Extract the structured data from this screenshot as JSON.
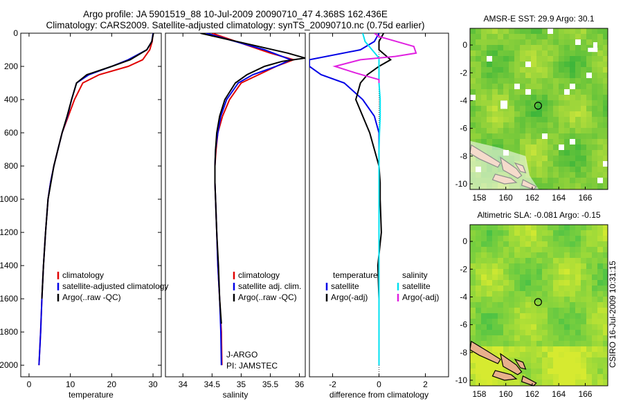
{
  "header": {
    "line1": "Argo profile: JA 5901519_88 10-Jul-2009 20090710_47 4.368S 162.436E",
    "line2": "Climatology: CARS2009. Satellite-adjusted climatology: synTS_20090710.nc (0.75d earlier)"
  },
  "stamp": "CSIRO 16-Jul-2009 10:31:15",
  "colors": {
    "climatology": "#e00000",
    "satellite": "#0000e6",
    "argo": "#000000",
    "sal_satellite": "#00e0f0",
    "sal_argo": "#e020e0"
  },
  "chart_data": [
    {
      "type": "line",
      "panel": "temperature",
      "xlabel": "temperature",
      "ylabel": "",
      "xlim": [
        -2,
        32
      ],
      "ylim": [
        2070,
        0
      ],
      "x_ticks": [
        0,
        10,
        20,
        30
      ],
      "y_ticks": [
        0,
        200,
        400,
        600,
        800,
        1000,
        1200,
        1400,
        1600,
        1800,
        2000
      ],
      "legend": [
        "climatology",
        "satellite-adjusted climatology",
        "Argo(..raw -QC)"
      ],
      "series": [
        {
          "name": "climatology",
          "color": "#e00000",
          "points": [
            [
              30,
              0
            ],
            [
              29.8,
              50
            ],
            [
              29.2,
              100
            ],
            [
              27.5,
              160
            ],
            [
              24,
              200
            ],
            [
              17,
              250
            ],
            [
              13,
              300
            ],
            [
              11,
              400
            ],
            [
              9.5,
              500
            ],
            [
              8,
              600
            ],
            [
              7,
              700
            ],
            [
              6,
              800
            ],
            [
              5.2,
              900
            ],
            [
              4.6,
              1000
            ],
            [
              4,
              1200
            ],
            [
              3.5,
              1400
            ],
            [
              3.1,
              1600
            ],
            [
              2.8,
              1800
            ],
            [
              2.4,
              2000
            ]
          ]
        },
        {
          "name": "satellite-adjusted climatology",
          "color": "#0000e6",
          "points": [
            [
              30,
              0
            ],
            [
              29.7,
              50
            ],
            [
              28.5,
              100
            ],
            [
              24,
              160
            ],
            [
              20,
              200
            ],
            [
              14.5,
              250
            ],
            [
              11.5,
              300
            ],
            [
              10.3,
              400
            ],
            [
              9.3,
              500
            ],
            [
              8,
              600
            ],
            [
              7,
              700
            ],
            [
              6,
              800
            ],
            [
              5.2,
              900
            ],
            [
              4.6,
              1000
            ],
            [
              4,
              1200
            ],
            [
              3.5,
              1400
            ],
            [
              3.1,
              1600
            ],
            [
              2.8,
              1800
            ],
            [
              2.4,
              2000
            ]
          ]
        },
        {
          "name": "Argo(..raw -QC)",
          "color": "#000000",
          "points": [
            [
              30.1,
              0
            ],
            [
              29.7,
              50
            ],
            [
              28.5,
              100
            ],
            [
              24.5,
              160
            ],
            [
              20,
              200
            ],
            [
              14,
              250
            ],
            [
              11.5,
              300
            ],
            [
              10.3,
              400
            ],
            [
              9.2,
              500
            ],
            [
              8,
              600
            ],
            [
              7,
              700
            ],
            [
              6,
              800
            ],
            [
              5.3,
              900
            ],
            [
              4.6,
              1000
            ],
            [
              4,
              1200
            ],
            [
              3.5,
              1400
            ],
            [
              3.1,
              1600
            ]
          ]
        }
      ]
    },
    {
      "type": "line",
      "panel": "salinity",
      "xlabel": "salinity",
      "xlim": [
        33.7,
        36.1
      ],
      "ylim": [
        2070,
        0
      ],
      "x_ticks": [
        34,
        34.5,
        35,
        35.5,
        36
      ],
      "legend": [
        "climatology",
        "satellite adj. clim.",
        "Argo(..raw -QC)"
      ],
      "annotation": [
        "J-ARGO",
        "PI: JAMSTEC"
      ],
      "series": [
        {
          "name": "climatology",
          "color": "#e00000",
          "points": [
            [
              34.5,
              0
            ],
            [
              35.0,
              60
            ],
            [
              35.5,
              120
            ],
            [
              35.9,
              160
            ],
            [
              35.6,
              200
            ],
            [
              35.3,
              250
            ],
            [
              35.0,
              300
            ],
            [
              34.8,
              400
            ],
            [
              34.68,
              500
            ],
            [
              34.6,
              600
            ],
            [
              34.57,
              700
            ],
            [
              34.55,
              800
            ],
            [
              34.55,
              900
            ],
            [
              34.56,
              1000
            ],
            [
              34.58,
              1200
            ],
            [
              34.6,
              1400
            ],
            [
              34.63,
              1600
            ],
            [
              34.66,
              1800
            ],
            [
              34.67,
              2000
            ]
          ]
        },
        {
          "name": "satellite adj. clim.",
          "color": "#0000e6",
          "points": [
            [
              34.4,
              0
            ],
            [
              34.9,
              50
            ],
            [
              35.4,
              100
            ],
            [
              35.7,
              140
            ],
            [
              35.85,
              160
            ],
            [
              35.6,
              200
            ],
            [
              35.2,
              250
            ],
            [
              34.95,
              300
            ],
            [
              34.75,
              400
            ],
            [
              34.65,
              500
            ],
            [
              34.6,
              600
            ],
            [
              34.56,
              700
            ],
            [
              34.55,
              800
            ],
            [
              34.55,
              900
            ],
            [
              34.56,
              1000
            ],
            [
              34.58,
              1200
            ],
            [
              34.6,
              1400
            ],
            [
              34.63,
              1600
            ],
            [
              34.65,
              1800
            ],
            [
              34.66,
              2000
            ]
          ]
        },
        {
          "name": "Argo(..raw -QC)",
          "color": "#000000",
          "points": [
            [
              34.3,
              0
            ],
            [
              34.8,
              40
            ],
            [
              35.3,
              80
            ],
            [
              35.8,
              120
            ],
            [
              36.1,
              150
            ],
            [
              35.7,
              170
            ],
            [
              35.4,
              200
            ],
            [
              35.1,
              250
            ],
            [
              34.9,
              300
            ],
            [
              34.72,
              400
            ],
            [
              34.63,
              500
            ],
            [
              34.58,
              600
            ],
            [
              34.56,
              700
            ],
            [
              34.55,
              800
            ],
            [
              34.55,
              900
            ],
            [
              34.56,
              1000
            ],
            [
              34.58,
              1200
            ],
            [
              34.61,
              1400
            ],
            [
              34.63,
              1600
            ],
            [
              34.66,
              1750
            ]
          ]
        }
      ]
    },
    {
      "type": "line",
      "panel": "difference",
      "xlabel": "difference from climatology",
      "xlim": [
        -3,
        3
      ],
      "ylim": [
        2070,
        0
      ],
      "x_ticks": [
        -2,
        0,
        2
      ],
      "legend_headers": [
        "temperature",
        "salinity"
      ],
      "legend": [
        "satellite",
        "Argo(-adj)",
        "satellite",
        "Argo(-adj)"
      ],
      "series": [
        {
          "name": "temperature satellite",
          "color": "#0000e6",
          "points": [
            [
              0,
              0
            ],
            [
              -0.2,
              50
            ],
            [
              -0.8,
              100
            ],
            [
              -3,
              160
            ],
            [
              -3,
              200
            ],
            [
              -2.5,
              250
            ],
            [
              -1.5,
              300
            ],
            [
              -0.7,
              400
            ],
            [
              -0.2,
              500
            ],
            [
              0,
              600
            ],
            [
              0,
              800
            ],
            [
              0,
              1000
            ],
            [
              0,
              1200
            ],
            [
              0,
              1400
            ],
            [
              0,
              1600
            ],
            [
              0,
              1800
            ],
            [
              0,
              2000
            ]
          ]
        },
        {
          "name": "temperature Argo(-adj)",
          "color": "#000000",
          "points": [
            [
              0.2,
              0
            ],
            [
              0,
              50
            ],
            [
              0,
              100
            ],
            [
              0.5,
              160
            ],
            [
              0,
              200
            ],
            [
              -0.5,
              250
            ],
            [
              -0.8,
              300
            ],
            [
              -0.9,
              350
            ],
            [
              -1.0,
              400
            ],
            [
              -0.7,
              500
            ],
            [
              -0.4,
              600
            ],
            [
              -0.2,
              700
            ],
            [
              0,
              800
            ],
            [
              0.05,
              900
            ],
            [
              0.05,
              1000
            ],
            [
              0.1,
              1200
            ],
            [
              -0.05,
              1400
            ],
            [
              0,
              1600
            ]
          ]
        },
        {
          "name": "salinity satellite",
          "color": "#00e0f0",
          "points": [
            [
              -0.7,
              0
            ],
            [
              -0.6,
              50
            ],
            [
              -0.3,
              100
            ],
            [
              0,
              150
            ],
            [
              0,
              200
            ],
            [
              0,
              300
            ],
            [
              0.05,
              400
            ],
            [
              0.05,
              500
            ],
            [
              0.02,
              600
            ],
            [
              0,
              700
            ],
            [
              0,
              800
            ],
            [
              0,
              1000
            ],
            [
              0,
              1200
            ],
            [
              0,
              1400
            ],
            [
              0,
              1600
            ],
            [
              0,
              1800
            ],
            [
              0,
              2000
            ]
          ]
        },
        {
          "name": "salinity Argo(-adj)",
          "color": "#e020e0",
          "points": [
            [
              -0.2,
              0
            ],
            [
              0,
              20
            ],
            [
              0.5,
              40
            ],
            [
              1.5,
              80
            ],
            [
              1.6,
              120
            ],
            [
              0.7,
              140
            ],
            [
              -0.8,
              160
            ],
            [
              -1.9,
              200
            ],
            [
              -1.0,
              240
            ],
            [
              0,
              280
            ],
            [
              0,
              300
            ]
          ]
        }
      ]
    },
    {
      "type": "heatmap",
      "panel": "sst_map",
      "title": "AMSR-E SST: 29.9 Argo: 30.1",
      "xlim": [
        157.3,
        167.7
      ],
      "ylim": [
        -10.4,
        1.2
      ],
      "x_ticks": [
        158,
        160,
        162,
        164,
        166
      ],
      "y_ticks": [
        0,
        -2,
        -4,
        -6,
        -8,
        -10
      ],
      "marker": {
        "lon": 162.44,
        "lat": -4.37
      }
    },
    {
      "type": "heatmap",
      "panel": "sla_map",
      "title": "Altimetric SLA: -0.081 Argo: -0.15",
      "xlim": [
        157.3,
        167.7
      ],
      "ylim": [
        -10.4,
        1.2
      ],
      "x_ticks": [
        158,
        160,
        162,
        164,
        166
      ],
      "y_ticks": [
        0,
        -2,
        -4,
        -6,
        -8,
        -10
      ],
      "marker": {
        "lon": 162.44,
        "lat": -4.37
      }
    }
  ]
}
